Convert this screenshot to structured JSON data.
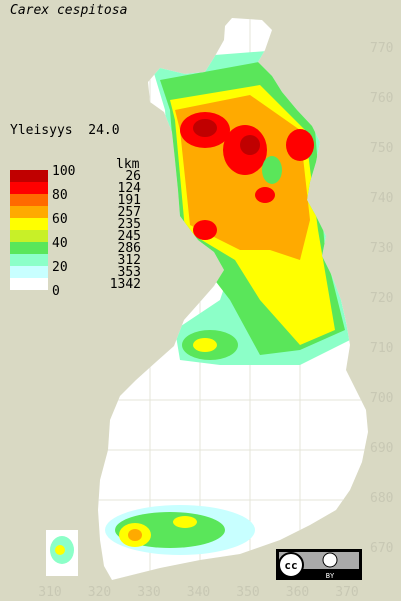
{
  "title": "Carex cespitosa",
  "frequency": "Yleisyys  24.0",
  "legend": {
    "scale_labels": [
      100,
      80,
      60,
      40,
      20,
      0
    ],
    "count_header": "lkm",
    "bands": [
      {
        "color": "#c00000",
        "count": 26
      },
      {
        "color": "#ff0000",
        "count": 124
      },
      {
        "color": "#ff6a00",
        "count": 191
      },
      {
        "color": "#ffaa00",
        "count": 257
      },
      {
        "color": "#ffff00",
        "count": 235
      },
      {
        "color": "#c8f028",
        "count": 245
      },
      {
        "color": "#5ae65a",
        "count": 286
      },
      {
        "color": "#8cffc8",
        "count": 312
      },
      {
        "color": "#c8ffff",
        "count": 353
      },
      {
        "color": "#ffffff",
        "count": 1342
      }
    ]
  },
  "northing_labels": [
    770,
    760,
    750,
    740,
    730,
    720,
    710,
    700,
    690,
    680,
    670
  ],
  "easting_labels": [
    310,
    320,
    330,
    340,
    350,
    360,
    370
  ],
  "license": {
    "cc": "cc",
    "by": "BY"
  }
}
